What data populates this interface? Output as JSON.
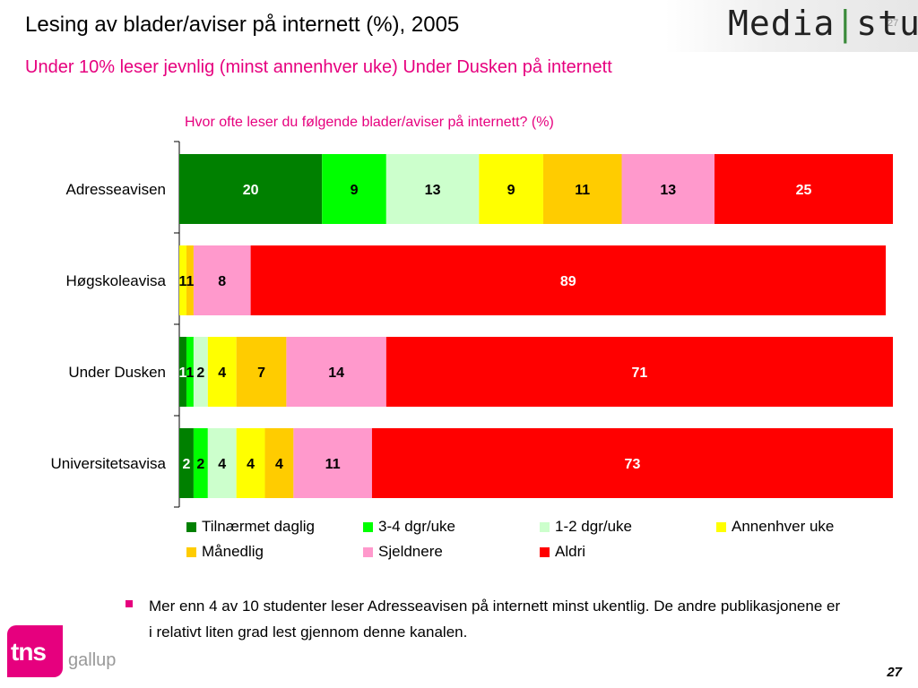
{
  "slide": {
    "title": "Lesing av blader/aviser på internett (%), 2005",
    "subtitle": "Under 10% leser jevnlig (minst annenhver uke) Under Dusken på internett",
    "page_number": "27",
    "bullet": "Mer enn 4 av 10 studenter leser Adresseavisen på internett minst ukentlig. De andre publikasjonene er i relativt liten grad lest gjennom denne kanalen."
  },
  "branding": {
    "left": "Media",
    "right": "stud",
    "corner_number": "27",
    "logo_tns": "tns",
    "logo_gallup": "gallup"
  },
  "chart_data": {
    "type": "bar",
    "orientation": "horizontal",
    "stacked": true,
    "title": "Hvor ofte leser du følgende blader/aviser på internett? (%)",
    "categories": [
      "Adresseavisen",
      "Høgskoleavisa",
      "Under Dusken",
      "Universitetsavisa"
    ],
    "series": [
      {
        "name": "Tilnærmet daglig",
        "color": "#008000",
        "values": [
          20,
          0,
          1,
          2
        ]
      },
      {
        "name": "3-4 dgr/uke",
        "color": "#00ff00",
        "values": [
          9,
          0,
          1,
          2
        ]
      },
      {
        "name": "1-2 dgr/uke",
        "color": "#ccffcc",
        "values": [
          13,
          0,
          2,
          4
        ]
      },
      {
        "name": "Annenhver uke",
        "color": "#ffff00",
        "values": [
          9,
          1,
          4,
          4
        ]
      },
      {
        "name": "Månedlig",
        "color": "#ffcc00",
        "values": [
          11,
          1,
          7,
          4
        ]
      },
      {
        "name": "Sjeldnere",
        "color": "#ff99cc",
        "values": [
          13,
          8,
          14,
          11
        ]
      },
      {
        "name": "Aldri",
        "color": "#ff0000",
        "values": [
          25,
          89,
          71,
          73
        ]
      }
    ],
    "xlim": [
      0,
      100
    ],
    "legend_position": "bottom",
    "grid": false
  }
}
